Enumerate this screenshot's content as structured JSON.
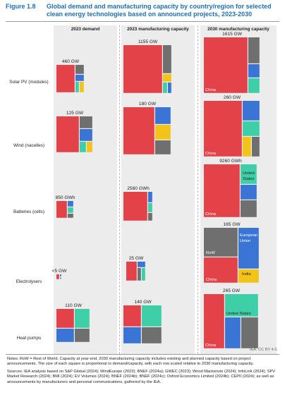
{
  "figure": {
    "label": "Figure 1.8",
    "title": "Global demand and manufacturing capacity by country/region for selected clean energy technologies based on announced projects, 2023-2030"
  },
  "columns": [
    "2023 demand",
    "2023 manufacturing capacity",
    "2030 manufacturing capacity"
  ],
  "rows": [
    {
      "label": "Solar PV (modules)"
    },
    {
      "label": "Wind (nacelles)"
    },
    {
      "label": "Batteries (cells)"
    },
    {
      "label": "Electrolysers"
    },
    {
      "label": "Heat pumps"
    }
  ],
  "colors": {
    "China": "#e44249",
    "United States": "#3ecfa8",
    "European Union": "#3a75d6",
    "India": "#f2c318",
    "Other": "#6f6f6f",
    "Panel": "#ececec",
    "Title": "#1e6fb3"
  },
  "chart_data": {
    "type": "treemap-grid",
    "rows": [
      "Solar PV (modules)",
      "Wind (nacelles)",
      "Batteries (cells)",
      "Electrolysers",
      "Heat pumps"
    ],
    "columns": [
      "2023 demand",
      "2023 manufacturing capacity",
      "2030 manufacturing capacity"
    ],
    "cells": [
      {
        "row": "Solar PV (modules)",
        "column": "2023 demand",
        "label": "460 GW",
        "value": 460,
        "unit": "GW",
        "inner_labels": []
      },
      {
        "row": "Solar PV (modules)",
        "column": "2023 manufacturing capacity",
        "label": "1155 GW",
        "value": 1155,
        "unit": "GW",
        "inner_labels": []
      },
      {
        "row": "Solar PV (modules)",
        "column": "2030 manufacturing capacity",
        "label": "1615 GW",
        "value": 1615,
        "unit": "GW",
        "inner_labels": [
          "China"
        ]
      },
      {
        "row": "Wind (nacelles)",
        "column": "2023 demand",
        "label": "125 GW",
        "value": 125,
        "unit": "GW",
        "inner_labels": []
      },
      {
        "row": "Wind (nacelles)",
        "column": "2023 manufacturing capacity",
        "label": "180 GW",
        "value": 180,
        "unit": "GW",
        "inner_labels": []
      },
      {
        "row": "Wind (nacelles)",
        "column": "2030 manufacturing capacity",
        "label": "260 GW",
        "value": 260,
        "unit": "GW",
        "inner_labels": [
          "China"
        ]
      },
      {
        "row": "Batteries (cells)",
        "column": "2023 demand",
        "label": "850 GWh",
        "value": 850,
        "unit": "GWh",
        "inner_labels": []
      },
      {
        "row": "Batteries (cells)",
        "column": "2023 manufacturing capacity",
        "label": "2560 GWh",
        "value": 2560,
        "unit": "GWh",
        "inner_labels": []
      },
      {
        "row": "Batteries (cells)",
        "column": "2030 manufacturing capacity",
        "label": "9260 GWh",
        "value": 9260,
        "unit": "GWh",
        "inner_labels": [
          "China",
          "United States"
        ]
      },
      {
        "row": "Electrolysers",
        "column": "2023 demand",
        "label": "<5 GW",
        "value": 5,
        "unit": "GW",
        "inner_labels": []
      },
      {
        "row": "Electrolysers",
        "column": "2023 manufacturing capacity",
        "label": "25 GW",
        "value": 25,
        "unit": "GW",
        "inner_labels": []
      },
      {
        "row": "Electrolysers",
        "column": "2030 manufacturing capacity",
        "label": "165 GW",
        "value": 165,
        "unit": "GW",
        "inner_labels": [
          "RoW",
          "China",
          "European Union",
          "India"
        ]
      },
      {
        "row": "Heat pumps",
        "column": "2023 demand",
        "label": "110 GW",
        "value": 110,
        "unit": "GW",
        "inner_labels": []
      },
      {
        "row": "Heat pumps",
        "column": "2023 manufacturing capacity",
        "label": "140 GW",
        "value": 140,
        "unit": "GW",
        "inner_labels": []
      },
      {
        "row": "Heat pumps",
        "column": "2030 manufacturing capacity",
        "label": "265 GW",
        "value": 265,
        "unit": "GW",
        "inner_labels": [
          "China",
          "United States"
        ]
      }
    ]
  },
  "credit": "IEA. CC BY 4.0.",
  "notes": "Notes: RoW = Rest of World. Capacity at year-end. 2030 manufacturing capacity includes existing and planned capacity based on project announcements. The size of each square is proportional to demand/capacity, with each row scaled relative to 2030 manufacturing capacity.",
  "sources": "Sources: IEA analysis based on S&P Global (2024); WindEurope (2023); BNEF (2024a); GWEC (2023); Wood Mackenzie (2024); InfoLink (2024); SPV Market Research (2024); BMI (2024); EV Volumes (2024); BNEF (2024b); BNEF (2024c); Oxford Economics Limited (2024b); CEPII (2024); as well as announcements by manufacturers and personal communications, gathered by the IEA."
}
